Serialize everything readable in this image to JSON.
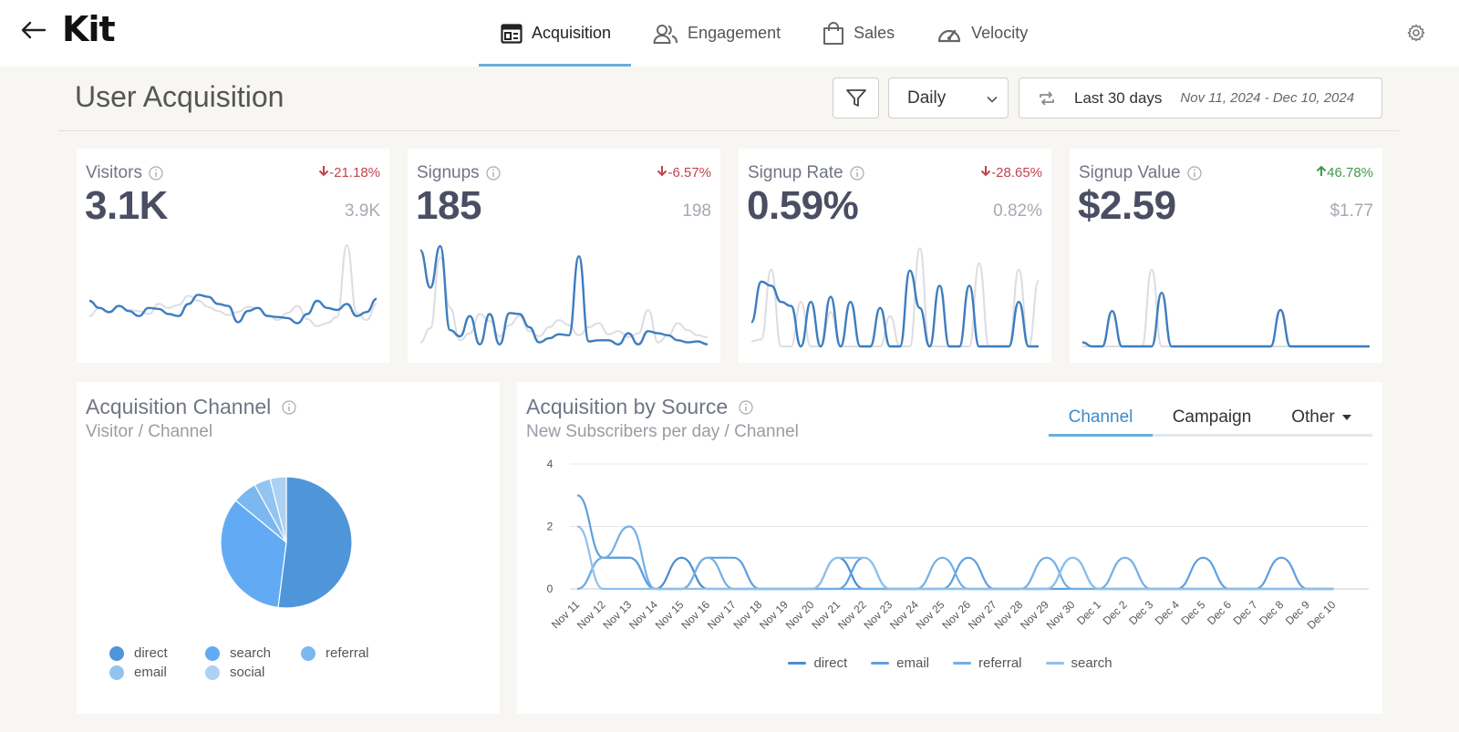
{
  "nav": {
    "logo": "Kit",
    "tabs": [
      {
        "label": "Acquisition",
        "icon": "dashboard-icon"
      },
      {
        "label": "Engagement",
        "icon": "users-icon"
      },
      {
        "label": "Sales",
        "icon": "shopping-bag-icon"
      },
      {
        "label": "Velocity",
        "icon": "gauge-icon"
      }
    ],
    "active_tab": "Acquisition"
  },
  "header": {
    "title": "User Acquisition",
    "period": "Daily",
    "range_label": "Last 30 days",
    "range_dates": "Nov 11, 2024 - Dec 10, 2024"
  },
  "kpis": [
    {
      "label": "Visitors",
      "value": "3.1K",
      "previous": "3.9K",
      "change": "-21.18%",
      "direction": "down",
      "current": [
        0.45,
        0.38,
        0.34,
        0.4,
        0.35,
        0.3,
        0.38,
        0.37,
        0.32,
        0.3,
        0.42,
        0.51,
        0.49,
        0.42,
        0.4,
        0.24,
        0.35,
        0.38,
        0.3,
        0.29,
        0.28,
        0.23,
        0.32,
        0.45,
        0.38,
        0.36,
        0.42,
        0.3,
        0.34,
        0.47
      ],
      "previous_series": [
        0.3,
        0.38,
        0.33,
        0.4,
        0.36,
        0.35,
        0.32,
        0.42,
        0.38,
        0.41,
        0.5,
        0.45,
        0.39,
        0.35,
        0.31,
        0.34,
        0.39,
        0.38,
        0.31,
        0.26,
        0.33,
        0.4,
        0.27,
        0.2,
        0.23,
        0.29,
        1.0,
        0.33,
        0.26,
        0.42
      ]
    },
    {
      "label": "Signups",
      "value": "185",
      "previous": "198",
      "change": "-6.57%",
      "direction": "down",
      "current": [
        0.95,
        0.58,
        0.99,
        0.16,
        0.1,
        0.3,
        0.02,
        0.32,
        0.02,
        0.33,
        0.32,
        0.19,
        0.04,
        0.08,
        0.12,
        0.11,
        0.89,
        0.05,
        0.06,
        0.06,
        0.02,
        0.13,
        0.02,
        0.15,
        0.13,
        0.11,
        0.06,
        0.04,
        0.05,
        0.02
      ],
      "previous_series": [
        0.04,
        0.18,
        0.88,
        0.38,
        0.06,
        0.13,
        0.32,
        0.25,
        0.1,
        0.21,
        0.3,
        0.15,
        0.1,
        0.19,
        0.26,
        0.21,
        0.11,
        0.19,
        0.23,
        0.12,
        0.15,
        0.09,
        0.13,
        0.36,
        0.04,
        0.11,
        0.23,
        0.16,
        0.11,
        0.09
      ]
    },
    {
      "label": "Signup Rate",
      "value": "0.59%",
      "previous": "0.82%",
      "change": "-28.65%",
      "direction": "down",
      "current": [
        0.24,
        0.64,
        0.6,
        0.44,
        0.4,
        0.0,
        0.44,
        0.0,
        0.49,
        0.0,
        0.44,
        0.0,
        0.0,
        0.38,
        0.0,
        0.0,
        0.75,
        0.38,
        0.0,
        0.6,
        0.0,
        0.0,
        0.6,
        0.0,
        0.0,
        0.0,
        0.0,
        0.44,
        0.0,
        0.0
      ],
      "previous_series": [
        0.05,
        0.07,
        0.76,
        0.0,
        0.0,
        0.44,
        0.0,
        0.0,
        0.34,
        0.0,
        0.0,
        0.0,
        0.0,
        0.0,
        0.3,
        0.0,
        0.0,
        0.97,
        0.0,
        0.0,
        0.0,
        0.0,
        0.0,
        0.82,
        0.0,
        0.0,
        0.0,
        0.76,
        0.0,
        0.65
      ]
    },
    {
      "label": "Signup Value",
      "value": "$2.59",
      "previous": "$1.77",
      "change": "46.78%",
      "direction": "up",
      "current": [
        0.04,
        0.0,
        0.0,
        0.35,
        0.0,
        0.0,
        0.0,
        0.0,
        0.53,
        0.0,
        0.0,
        0.0,
        0.0,
        0.0,
        0.0,
        0.0,
        0.0,
        0.0,
        0.0,
        0.0,
        0.36,
        0.0,
        0.0,
        0.0,
        0.0,
        0.0,
        0.0,
        0.0,
        0.0,
        0.0
      ],
      "previous_series": [
        0.0,
        0.0,
        0.0,
        0.0,
        0.0,
        0.0,
        0.0,
        0.76,
        0.0,
        0.0,
        0.0,
        0.0,
        0.0,
        0.0,
        0.0,
        0.0,
        0.0,
        0.0,
        0.0,
        0.0,
        0.0,
        0.0,
        0.0,
        0.0,
        0.0,
        0.0,
        0.0,
        0.0,
        0.0,
        0.0
      ]
    }
  ],
  "channel_card": {
    "title": "Acquisition Channel",
    "subtitle": "Visitor / Channel",
    "legend": [
      "direct",
      "search",
      "referral",
      "email",
      "social"
    ],
    "slices": [
      {
        "name": "direct",
        "value": 52,
        "color": "#4f95da"
      },
      {
        "name": "search",
        "value": 34,
        "color": "#62aaf4"
      },
      {
        "name": "referral",
        "value": 6,
        "color": "#7ab8ef"
      },
      {
        "name": "email",
        "value": 4,
        "color": "#92c4f0"
      },
      {
        "name": "social",
        "value": 4,
        "color": "#acd1f2"
      }
    ]
  },
  "source_card": {
    "title": "Acquisition by Source",
    "subtitle": "New Subscribers per day / Channel",
    "tabs": [
      "Channel",
      "Campaign",
      "Other"
    ],
    "active_tab": "Channel"
  },
  "chart_data": {
    "type": "line",
    "title": "",
    "xlabel": "",
    "ylabel": "",
    "ylim": [
      0,
      4
    ],
    "yticks": [
      0,
      2,
      4
    ],
    "grid": true,
    "legend_position": "bottom",
    "x": [
      "Nov 11",
      "Nov 12",
      "Nov 13",
      "Nov 14",
      "Nov 15",
      "Nov 16",
      "Nov 17",
      "Nov 18",
      "Nov 19",
      "Nov 20",
      "Nov 21",
      "Nov 22",
      "Nov 23",
      "Nov 24",
      "Nov 25",
      "Nov 26",
      "Nov 27",
      "Nov 28",
      "Nov 29",
      "Nov 30",
      "Dec 1",
      "Dec 2",
      "Dec 3",
      "Dec 4",
      "Dec 5",
      "Dec 6",
      "Dec 7",
      "Dec 8",
      "Dec 9",
      "Dec 10"
    ],
    "series": [
      {
        "name": "direct",
        "color": "#4a8cd0",
        "values": [
          0,
          1,
          1,
          0,
          1,
          0,
          0,
          0,
          0,
          0,
          1,
          0,
          0,
          0,
          0,
          0,
          0,
          0,
          0,
          1,
          0,
          0,
          0,
          0,
          0,
          0,
          0,
          0,
          0,
          0
        ]
      },
      {
        "name": "email",
        "color": "#5e9fde",
        "values": [
          3,
          1,
          1,
          0,
          0,
          1,
          1,
          0,
          0,
          0,
          0,
          1,
          0,
          0,
          0,
          1,
          0,
          0,
          0,
          0,
          0,
          0,
          0,
          0,
          1,
          0,
          0,
          1,
          0,
          0
        ]
      },
      {
        "name": "referral",
        "color": "#72afe6",
        "values": [
          0,
          1,
          2,
          0,
          0,
          1,
          0,
          0,
          0,
          0,
          0,
          0,
          0,
          0,
          1,
          0,
          0,
          0,
          1,
          0,
          0,
          1,
          0,
          0,
          0,
          0,
          0,
          0,
          0,
          0
        ]
      },
      {
        "name": "search",
        "color": "#8fc0ec",
        "values": [
          2,
          0,
          0,
          0,
          0,
          0,
          0,
          0,
          0,
          0,
          1,
          1,
          0,
          0,
          0,
          0,
          0,
          0,
          0,
          1,
          0,
          0,
          0,
          0,
          0,
          0,
          0,
          0,
          0,
          0
        ]
      }
    ]
  }
}
